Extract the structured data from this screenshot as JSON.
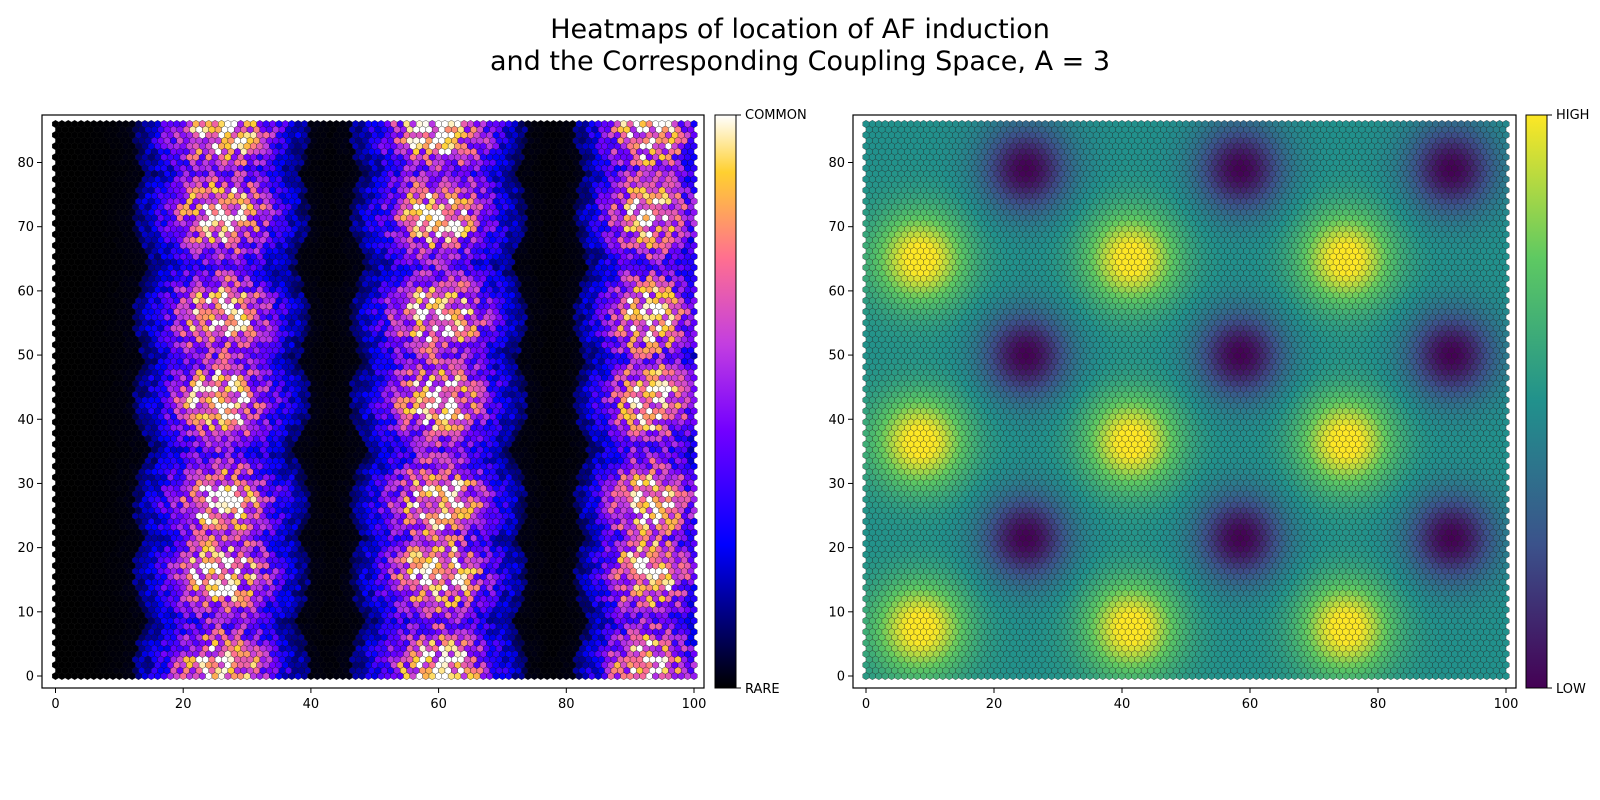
{
  "figure": {
    "title_line1": "Heatmaps of location of AF induction",
    "title_line2": "and the Corresponding Coupling Space, A = 3"
  },
  "chart_data": [
    {
      "type": "heatmap",
      "subtype": "hexbin",
      "title": "",
      "xlabel": "",
      "ylabel": "",
      "xlim": [
        0,
        100
      ],
      "ylim": [
        0,
        86
      ],
      "x_ticks": [
        0,
        20,
        40,
        60,
        80,
        100
      ],
      "y_ticks": [
        0,
        10,
        20,
        30,
        40,
        50,
        60,
        70,
        80
      ],
      "colormap": "gnuplot2",
      "colorbar": {
        "min_label": "RARE",
        "max_label": "COMMON"
      },
      "grid": false,
      "hot_band_centers_x": [
        26,
        60,
        93
      ],
      "hot_spot_rows_y": [
        1,
        16,
        27,
        43,
        56,
        72,
        85
      ],
      "description": "Induction frequency concentrated in three vertical bands; areas between bands are near zero (black)."
    },
    {
      "type": "heatmap",
      "subtype": "hexbin",
      "title": "",
      "xlabel": "",
      "ylabel": "",
      "xlim": [
        0,
        100
      ],
      "ylim": [
        0,
        86
      ],
      "x_ticks": [
        0,
        20,
        40,
        60,
        80,
        100
      ],
      "y_ticks": [
        0,
        10,
        20,
        30,
        40,
        50,
        60,
        70,
        80
      ],
      "colormap": "viridis",
      "colorbar": {
        "min_label": "LOW",
        "max_label": "HIGH"
      },
      "grid": false,
      "maxima_x": [
        8.5,
        41.5,
        75
      ],
      "maxima_y": [
        7.5,
        36.5,
        65
      ],
      "minima_x": [
        25,
        58.5,
        91.5
      ],
      "minima_y": [
        21.5,
        50,
        79
      ]
    }
  ]
}
